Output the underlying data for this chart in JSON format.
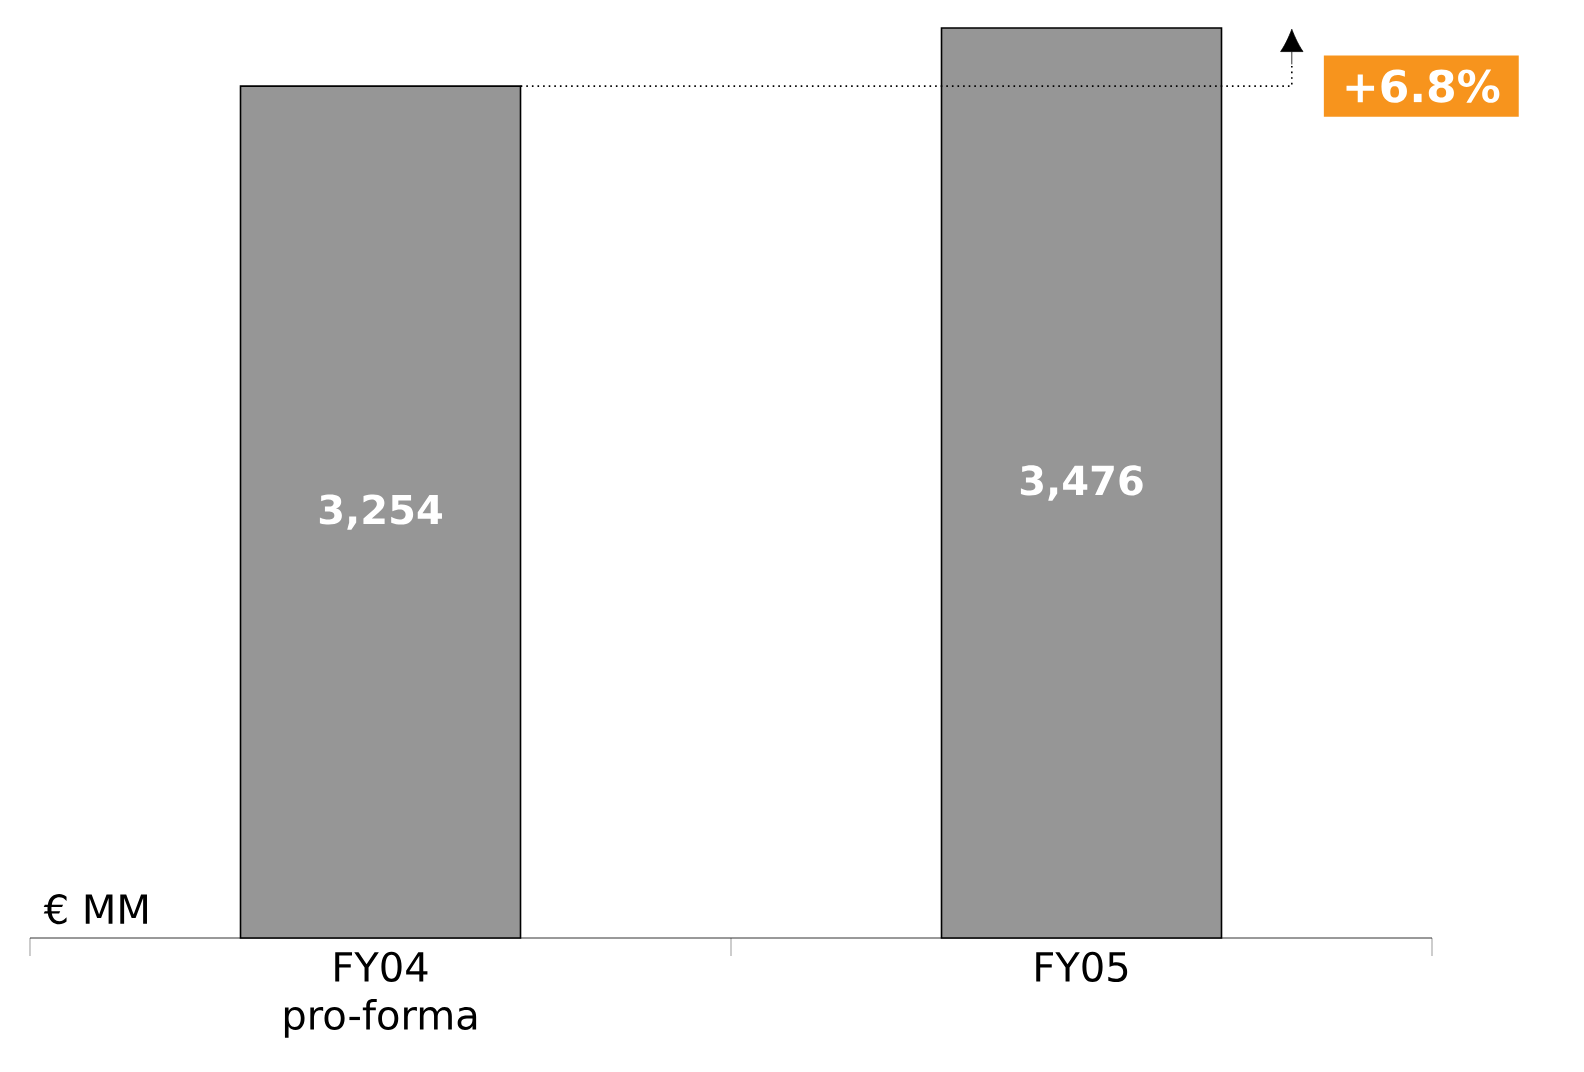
{
  "chart_data": {
    "type": "bar",
    "categories": [
      "FY04 pro-forma",
      "FY05"
    ],
    "values": [
      3254,
      3476
    ],
    "color": "#969696",
    "value_labels": [
      "3,254",
      "3,476"
    ],
    "ylabel": "€ MM",
    "annotations": [
      "+6.8%"
    ]
  }
}
